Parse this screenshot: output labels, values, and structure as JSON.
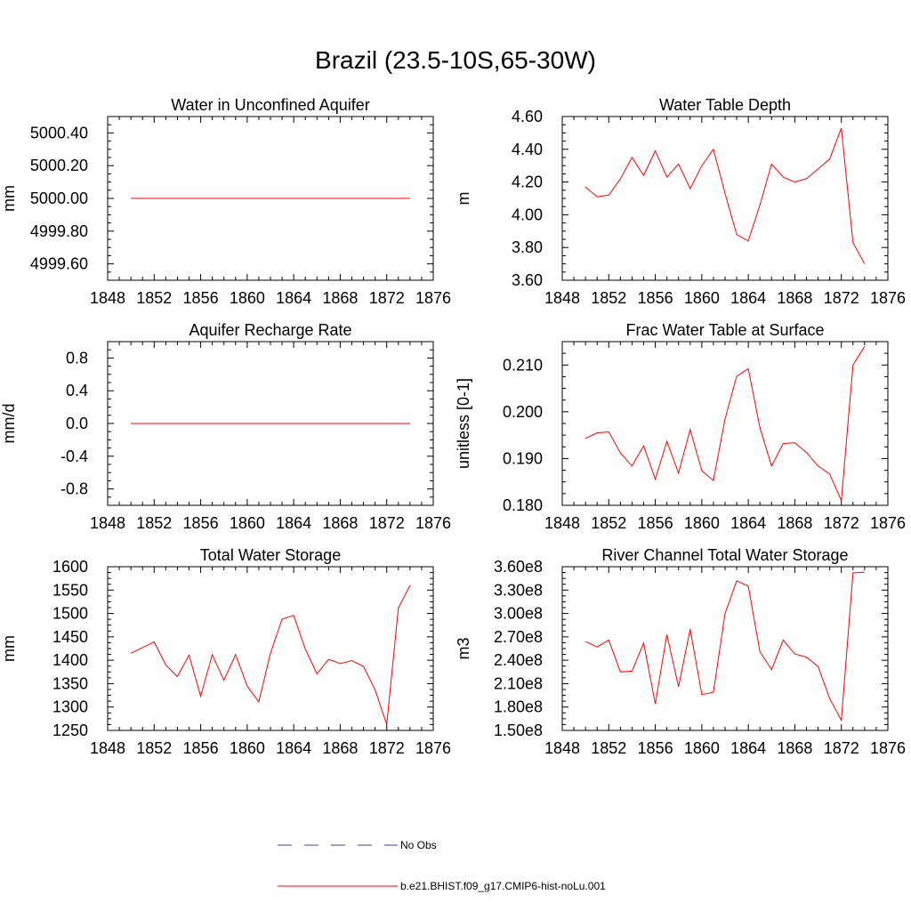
{
  "title": "Brazil (23.5-10S,65-30W)",
  "legend": {
    "entries": [
      {
        "label": "No Obs",
        "color": "#3b3bb0",
        "dash": true
      },
      {
        "label": "b.e21.BHIST.f09_g17.CMIP6-hist-noLu.001",
        "color": "#ff0000",
        "dash": false
      }
    ]
  },
  "chart_data": [
    {
      "type": "line",
      "title": "Water in Unconfined Aquifer",
      "ylabel": "mm",
      "xlim": [
        1848,
        1876
      ],
      "ylim": [
        4999.5,
        5000.5
      ],
      "xticks": [
        1848,
        1852,
        1856,
        1860,
        1864,
        1868,
        1872,
        1876
      ],
      "yticks": [
        4999.6,
        4999.8,
        5000.0,
        5000.2,
        5000.4
      ],
      "ytick_labels": [
        "4999.60",
        "4999.80",
        "5000.00",
        "5000.20",
        "5000.40"
      ],
      "x": [
        1850,
        1851,
        1852,
        1853,
        1854,
        1855,
        1856,
        1857,
        1858,
        1859,
        1860,
        1861,
        1862,
        1863,
        1864,
        1865,
        1866,
        1867,
        1868,
        1869,
        1870,
        1871,
        1872,
        1873,
        1874
      ],
      "series": [
        {
          "color": "#ff0000",
          "values": [
            5000,
            5000,
            5000,
            5000,
            5000,
            5000,
            5000,
            5000,
            5000,
            5000,
            5000,
            5000,
            5000,
            5000,
            5000,
            5000,
            5000,
            5000,
            5000,
            5000,
            5000,
            5000,
            5000,
            5000,
            5000
          ]
        }
      ]
    },
    {
      "type": "line",
      "title": "Water Table Depth",
      "ylabel": "m",
      "xlim": [
        1848,
        1876
      ],
      "ylim": [
        3.6,
        4.6
      ],
      "xticks": [
        1848,
        1852,
        1856,
        1860,
        1864,
        1868,
        1872,
        1876
      ],
      "yticks": [
        3.6,
        3.8,
        4.0,
        4.2,
        4.4,
        4.6
      ],
      "ytick_labels": [
        "3.60",
        "3.80",
        "4.00",
        "4.20",
        "4.40",
        "4.60"
      ],
      "x": [
        1850,
        1851,
        1852,
        1853,
        1854,
        1855,
        1856,
        1857,
        1858,
        1859,
        1860,
        1861,
        1862,
        1863,
        1864,
        1865,
        1866,
        1867,
        1868,
        1869,
        1870,
        1871,
        1872,
        1873,
        1874
      ],
      "series": [
        {
          "color": "#ff0000",
          "values": [
            4.17,
            4.11,
            4.12,
            4.22,
            4.35,
            4.24,
            4.39,
            4.23,
            4.31,
            4.16,
            4.3,
            4.4,
            4.13,
            3.88,
            3.84,
            4.06,
            4.31,
            4.23,
            4.2,
            4.22,
            4.28,
            4.34,
            4.53,
            3.83,
            3.7
          ]
        }
      ]
    },
    {
      "type": "line",
      "title": "Aquifer Recharge Rate",
      "ylabel": "mm/d",
      "xlim": [
        1848,
        1876
      ],
      "ylim": [
        -1.0,
        1.0
      ],
      "xticks": [
        1848,
        1852,
        1856,
        1860,
        1864,
        1868,
        1872,
        1876
      ],
      "yticks": [
        -0.8,
        -0.4,
        0.0,
        0.4,
        0.8
      ],
      "ytick_labels": [
        "-0.8",
        "-0.4",
        "0.0",
        "0.4",
        "0.8"
      ],
      "x": [
        1850,
        1851,
        1852,
        1853,
        1854,
        1855,
        1856,
        1857,
        1858,
        1859,
        1860,
        1861,
        1862,
        1863,
        1864,
        1865,
        1866,
        1867,
        1868,
        1869,
        1870,
        1871,
        1872,
        1873,
        1874
      ],
      "series": [
        {
          "color": "#ff0000",
          "values": [
            0,
            0,
            0,
            0,
            0,
            0,
            0,
            0,
            0,
            0,
            0,
            0,
            0,
            0,
            0,
            0,
            0,
            0,
            0,
            0,
            0,
            0,
            0,
            0,
            0
          ]
        }
      ]
    },
    {
      "type": "line",
      "title": "Frac Water Table at Surface",
      "ylabel": "unitless [0-1]",
      "xlim": [
        1848,
        1876
      ],
      "ylim": [
        0.18,
        0.215
      ],
      "xticks": [
        1848,
        1852,
        1856,
        1860,
        1864,
        1868,
        1872,
        1876
      ],
      "yticks": [
        0.18,
        0.19,
        0.2,
        0.21
      ],
      "ytick_labels": [
        "0.180",
        "0.190",
        "0.200",
        "0.210"
      ],
      "x": [
        1850,
        1851,
        1852,
        1853,
        1854,
        1855,
        1856,
        1857,
        1858,
        1859,
        1860,
        1861,
        1862,
        1863,
        1864,
        1865,
        1866,
        1867,
        1868,
        1869,
        1870,
        1871,
        1872,
        1873,
        1874
      ],
      "series": [
        {
          "color": "#ff0000",
          "values": [
            0.1943,
            0.1955,
            0.1957,
            0.1912,
            0.1884,
            0.1927,
            0.1856,
            0.1937,
            0.1869,
            0.1962,
            0.1874,
            0.1853,
            0.1985,
            0.2076,
            0.2092,
            0.1966,
            0.1884,
            0.1932,
            0.1934,
            0.1913,
            0.1884,
            0.1867,
            0.181,
            0.21,
            0.214
          ]
        }
      ]
    },
    {
      "type": "line",
      "title": "Total Water Storage",
      "ylabel": "mm",
      "xlim": [
        1848,
        1876
      ],
      "ylim": [
        1250,
        1600
      ],
      "xticks": [
        1848,
        1852,
        1856,
        1860,
        1864,
        1868,
        1872,
        1876
      ],
      "yticks": [
        1250,
        1300,
        1350,
        1400,
        1450,
        1500,
        1550,
        1600
      ],
      "ytick_labels": [
        "1250",
        "1300",
        "1350",
        "1400",
        "1450",
        "1500",
        "1550",
        "1600"
      ],
      "x": [
        1850,
        1851,
        1852,
        1853,
        1854,
        1855,
        1856,
        1857,
        1858,
        1859,
        1860,
        1861,
        1862,
        1863,
        1864,
        1865,
        1866,
        1867,
        1868,
        1869,
        1870,
        1871,
        1872,
        1873,
        1874
      ],
      "series": [
        {
          "color": "#ff0000",
          "values": [
            1415,
            1427,
            1439,
            1390,
            1365,
            1411,
            1323,
            1412,
            1357,
            1412,
            1345,
            1311,
            1415,
            1488,
            1496,
            1424,
            1371,
            1402,
            1393,
            1399,
            1387,
            1337,
            1263,
            1512,
            1560
          ]
        }
      ]
    },
    {
      "type": "line",
      "title": "River Channel Total Water Storage",
      "ylabel": "m3",
      "xlim": [
        1848,
        1876
      ],
      "ylim": [
        150000000,
        360000000
      ],
      "xticks": [
        1848,
        1852,
        1856,
        1860,
        1864,
        1868,
        1872,
        1876
      ],
      "yticks": [
        150000000,
        180000000,
        210000000,
        240000000,
        270000000,
        300000000,
        330000000,
        360000000
      ],
      "ytick_labels": [
        "1.50e8",
        "1.80e8",
        "2.10e8",
        "2.40e8",
        "2.70e8",
        "3.00e8",
        "3.30e8",
        "3.60e8"
      ],
      "x": [
        1850,
        1851,
        1852,
        1853,
        1854,
        1855,
        1856,
        1857,
        1858,
        1859,
        1860,
        1861,
        1862,
        1863,
        1864,
        1865,
        1866,
        1867,
        1868,
        1869,
        1870,
        1871,
        1872,
        1873,
        1874
      ],
      "series": [
        {
          "color": "#ff0000",
          "values": [
            264000000,
            257000000,
            266000000,
            225000000,
            226000000,
            262000000,
            184000000,
            273000000,
            206000000,
            280000000,
            196000000,
            199000000,
            300000000,
            342000000,
            335000000,
            251000000,
            228000000,
            266000000,
            248000000,
            244000000,
            232000000,
            191000000,
            163000000,
            352000000,
            353000000
          ]
        }
      ]
    }
  ]
}
